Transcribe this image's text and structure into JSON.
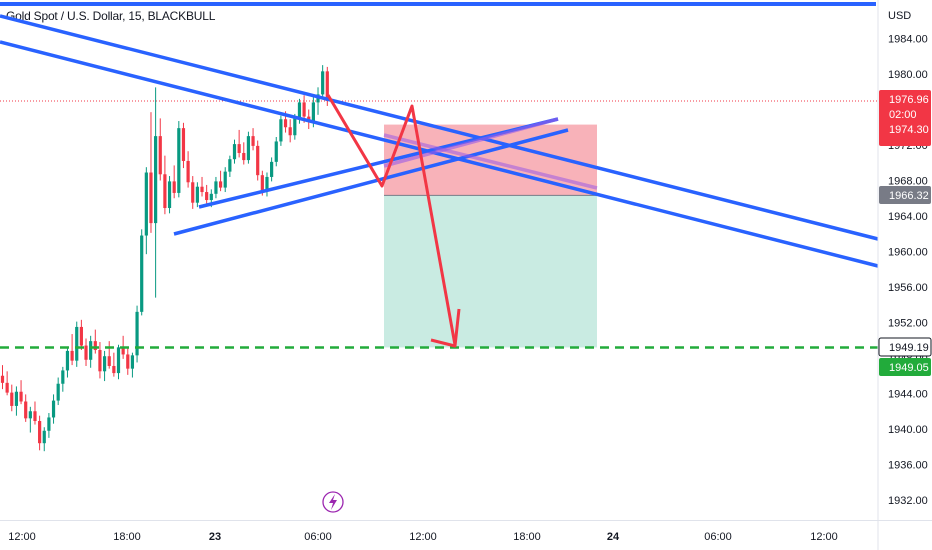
{
  "header": {
    "symbol_text": "Gold Spot / U.S. Dollar, 15, BLACKBULL"
  },
  "axis": {
    "currency": "USD"
  },
  "colors": {
    "up": "#089981",
    "down": "#f23645",
    "trendline": "#2962ff",
    "stop_zone": "#f7a5ad",
    "target_zone": "#b7e4d8",
    "arrow": "#f23645",
    "target_line": "#22ab3b",
    "purple": "#9c5ae6"
  },
  "chart_data": {
    "type": "candlestick",
    "title": "Gold Spot / U.S. Dollar, 15, BLACKBULL",
    "ylabel": "USD",
    "ylim": [
      1929.5,
      1987.5
    ],
    "y_ticks": [
      1984.0,
      1980.0,
      1976.0,
      1972.0,
      1968.0,
      1964.0,
      1960.0,
      1956.0,
      1952.0,
      1948.0,
      1944.0,
      1940.0,
      1936.0,
      1932.0
    ],
    "x_ticks": [
      {
        "label": "12:00",
        "bold": false
      },
      {
        "label": "18:00",
        "bold": false
      },
      {
        "label": "23",
        "bold": true
      },
      {
        "label": "06:00",
        "bold": false
      },
      {
        "label": "12:00",
        "bold": false
      },
      {
        "label": "18:00",
        "bold": false
      },
      {
        "label": "24",
        "bold": true
      },
      {
        "label": "06:00",
        "bold": false
      },
      {
        "label": "12:00",
        "bold": false
      }
    ],
    "price_labels": {
      "last_price": "1976.96",
      "countdown": "02:00",
      "prev_close": "1974.30",
      "entry": "1966.32",
      "target_a": "1949.19",
      "target_b": "1949.05"
    },
    "levels": {
      "last_price": 1976.96,
      "entry": 1966.32,
      "stop": 1974.3,
      "target": 1949.19
    },
    "candles": [
      [
        1946.0,
        1947.2,
        1944.5,
        1945.2
      ],
      [
        1945.2,
        1946.5,
        1943.8,
        1944.1
      ],
      [
        1944.1,
        1945.0,
        1942.0,
        1942.6
      ],
      [
        1942.6,
        1944.8,
        1941.5,
        1944.2
      ],
      [
        1944.2,
        1945.5,
        1942.8,
        1943.1
      ],
      [
        1943.1,
        1943.9,
        1940.8,
        1941.2
      ],
      [
        1941.2,
        1942.5,
        1939.6,
        1942.0
      ],
      [
        1942.0,
        1943.1,
        1940.5,
        1940.9
      ],
      [
        1940.9,
        1941.5,
        1937.6,
        1938.4
      ],
      [
        1938.4,
        1940.2,
        1937.5,
        1939.8
      ],
      [
        1939.8,
        1941.8,
        1939.0,
        1941.3
      ],
      [
        1941.3,
        1943.9,
        1940.6,
        1943.2
      ],
      [
        1943.2,
        1945.8,
        1942.7,
        1945.1
      ],
      [
        1945.1,
        1947.0,
        1944.2,
        1946.6
      ],
      [
        1946.6,
        1949.3,
        1945.8,
        1948.8
      ],
      [
        1948.8,
        1950.7,
        1947.2,
        1947.7
      ],
      [
        1947.7,
        1952.1,
        1947.0,
        1951.5
      ],
      [
        1951.5,
        1952.3,
        1948.9,
        1949.4
      ],
      [
        1949.4,
        1950.2,
        1947.1,
        1947.8
      ],
      [
        1947.8,
        1950.5,
        1946.9,
        1949.9
      ],
      [
        1949.9,
        1951.2,
        1948.5,
        1948.9
      ],
      [
        1948.9,
        1949.8,
        1945.7,
        1946.5
      ],
      [
        1946.5,
        1948.8,
        1945.4,
        1948.2
      ],
      [
        1948.2,
        1949.9,
        1946.8,
        1947.1
      ],
      [
        1947.1,
        1948.6,
        1945.9,
        1946.3
      ],
      [
        1946.3,
        1949.5,
        1945.6,
        1949.2
      ],
      [
        1949.2,
        1950.5,
        1947.9,
        1948.4
      ],
      [
        1948.4,
        1949.2,
        1946.1,
        1946.8
      ],
      [
        1946.8,
        1948.6,
        1945.8,
        1948.3
      ],
      [
        1948.3,
        1953.9,
        1947.5,
        1953.2
      ],
      [
        1953.2,
        1962.5,
        1952.8,
        1961.8
      ],
      [
        1961.8,
        1969.5,
        1959.7,
        1968.9
      ],
      [
        1968.9,
        1975.7,
        1962.1,
        1963.2
      ],
      [
        1963.2,
        1978.5,
        1954.8,
        1973.0
      ],
      [
        1973.0,
        1975.0,
        1968.0,
        1968.7
      ],
      [
        1968.7,
        1970.8,
        1964.2,
        1964.9
      ],
      [
        1964.9,
        1968.5,
        1964.3,
        1967.9
      ],
      [
        1967.9,
        1969.7,
        1966.0,
        1966.6
      ],
      [
        1966.6,
        1974.7,
        1966.1,
        1973.9
      ],
      [
        1973.9,
        1974.5,
        1969.4,
        1970.2
      ],
      [
        1970.2,
        1971.3,
        1967.2,
        1967.8
      ],
      [
        1967.8,
        1968.5,
        1964.8,
        1965.5
      ],
      [
        1965.5,
        1967.8,
        1965.0,
        1967.3
      ],
      [
        1967.3,
        1968.4,
        1966.2,
        1966.7
      ],
      [
        1966.7,
        1967.5,
        1965.2,
        1965.8
      ],
      [
        1965.8,
        1967.0,
        1965.0,
        1966.5
      ],
      [
        1966.5,
        1968.4,
        1966.0,
        1967.9
      ],
      [
        1967.9,
        1969.1,
        1966.8,
        1967.2
      ],
      [
        1967.2,
        1969.5,
        1966.7,
        1969.0
      ],
      [
        1969.0,
        1970.8,
        1968.4,
        1970.4
      ],
      [
        1970.4,
        1972.6,
        1969.9,
        1972.1
      ],
      [
        1972.1,
        1973.7,
        1970.6,
        1971.1
      ],
      [
        1971.1,
        1972.3,
        1969.8,
        1970.3
      ],
      [
        1970.3,
        1973.5,
        1969.9,
        1973.0
      ],
      [
        1973.0,
        1973.9,
        1971.4,
        1971.9
      ],
      [
        1971.9,
        1972.5,
        1968.0,
        1968.6
      ],
      [
        1968.6,
        1969.1,
        1966.3,
        1966.9
      ],
      [
        1966.9,
        1968.9,
        1966.2,
        1968.4
      ],
      [
        1968.4,
        1970.6,
        1967.9,
        1970.1
      ],
      [
        1970.1,
        1972.9,
        1969.6,
        1972.4
      ],
      [
        1972.4,
        1975.3,
        1971.9,
        1974.9
      ],
      [
        1974.9,
        1975.8,
        1973.4,
        1974.0
      ],
      [
        1974.0,
        1974.9,
        1972.3,
        1973.1
      ],
      [
        1973.1,
        1975.5,
        1972.6,
        1975.0
      ],
      [
        1975.0,
        1977.2,
        1974.4,
        1976.8
      ],
      [
        1976.8,
        1977.6,
        1974.5,
        1975.2
      ],
      [
        1975.2,
        1976.0,
        1973.8,
        1974.6
      ],
      [
        1974.6,
        1977.5,
        1974.0,
        1976.8
      ],
      [
        1976.8,
        1978.5,
        1975.4,
        1977.7
      ],
      [
        1977.7,
        1981.0,
        1977.2,
        1980.3
      ],
      [
        1980.3,
        1980.8,
        1976.4,
        1976.96
      ]
    ]
  }
}
